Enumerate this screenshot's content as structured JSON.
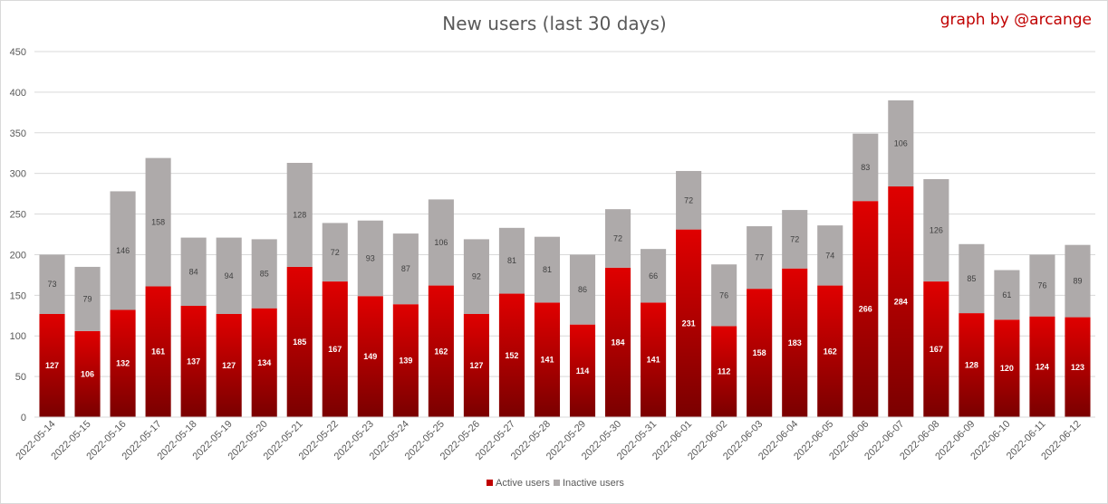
{
  "chart_data": {
    "type": "bar",
    "stacked": true,
    "title": "New users (last 30 days)",
    "credit": "graph by @arcange",
    "xlabel": "",
    "ylabel": "",
    "ylim": [
      0,
      450
    ],
    "yticks": [
      0,
      50,
      100,
      150,
      200,
      250,
      300,
      350,
      400,
      450
    ],
    "grid": true,
    "legend_position": "bottom",
    "categories": [
      "2022-05-14",
      "2022-05-15",
      "2022-05-16",
      "2022-05-17",
      "2022-05-18",
      "2022-05-19",
      "2022-05-20",
      "2022-05-21",
      "2022-05-22",
      "2022-05-23",
      "2022-05-24",
      "2022-05-25",
      "2022-05-26",
      "2022-05-27",
      "2022-05-28",
      "2022-05-29",
      "2022-05-30",
      "2022-05-31",
      "2022-06-01",
      "2022-06-02",
      "2022-06-03",
      "2022-06-04",
      "2022-06-05",
      "2022-06-06",
      "2022-06-07",
      "2022-06-08",
      "2022-06-09",
      "2022-06-10",
      "2022-06-11",
      "2022-06-12"
    ],
    "series": [
      {
        "name": "Active users",
        "color": "#c00000",
        "values": [
          127,
          106,
          132,
          161,
          137,
          127,
          134,
          185,
          167,
          149,
          139,
          162,
          127,
          152,
          141,
          114,
          184,
          141,
          231,
          112,
          158,
          183,
          162,
          266,
          284,
          167,
          128,
          120,
          124,
          123
        ]
      },
      {
        "name": "Inactive users",
        "color": "#aeaaaa",
        "values": [
          73,
          79,
          146,
          158,
          84,
          94,
          85,
          128,
          72,
          93,
          87,
          106,
          92,
          81,
          81,
          86,
          72,
          66,
          72,
          76,
          77,
          72,
          74,
          83,
          106,
          126,
          85,
          61,
          76,
          89
        ]
      }
    ]
  }
}
